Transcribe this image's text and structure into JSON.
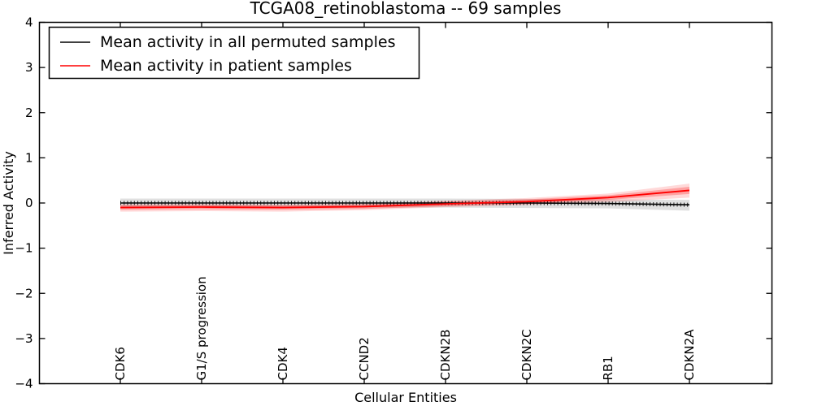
{
  "title": "TCGA08_retinoblastoma -- 69 samples",
  "chart_data": {
    "type": "line",
    "title": "TCGA08_retinoblastoma -- 69 samples",
    "xlabel": "Cellular Entities",
    "ylabel": "Inferred Activity",
    "ylim": [
      -4,
      4
    ],
    "yticks": [
      -4,
      -3,
      -2,
      -1,
      0,
      1,
      2,
      3,
      4
    ],
    "grid": false,
    "tick_direction": "in",
    "categories": [
      "CDK6",
      "G1/S progression",
      "CDK4",
      "CCND2",
      "CDKN2B",
      "CDKN2C",
      "RB1",
      "CDKN2A"
    ],
    "x_tick_label_rotation": "vertical-bottom-to-top",
    "legend": {
      "position": "upper left",
      "border": true
    },
    "series": [
      {
        "name": "Mean activity in all permuted samples",
        "color": "#000000",
        "line_style": "solid with dense vertical tick markers",
        "values": [
          0.0,
          0.0,
          0.0,
          0.0,
          0.0,
          0.0,
          -0.01,
          -0.04
        ],
        "band": {
          "upper": [
            0.1,
            0.1,
            0.1,
            0.1,
            0.1,
            0.09,
            0.08,
            0.07
          ],
          "lower": [
            -0.1,
            -0.1,
            -0.1,
            -0.1,
            -0.1,
            -0.11,
            -0.12,
            -0.17
          ],
          "color": "#000000",
          "alpha": 0.12
        }
      },
      {
        "name": "Mean activity in patient samples",
        "color": "#ff0000",
        "line_style": "solid",
        "values": [
          -0.1,
          -0.09,
          -0.1,
          -0.08,
          -0.02,
          0.03,
          0.12,
          0.28
        ],
        "band_inner": {
          "upper": [
            -0.05,
            -0.04,
            -0.05,
            -0.03,
            0.03,
            0.08,
            0.17,
            0.36
          ],
          "lower": [
            -0.15,
            -0.14,
            -0.15,
            -0.13,
            -0.07,
            -0.02,
            0.07,
            0.2
          ],
          "color": "#ff0000",
          "alpha": 0.25
        },
        "band_outer": {
          "upper": [
            -0.03,
            -0.03,
            -0.04,
            -0.02,
            0.05,
            0.11,
            0.21,
            0.43
          ],
          "lower": [
            -0.19,
            -0.18,
            -0.19,
            -0.16,
            -0.09,
            -0.04,
            0.02,
            0.12
          ],
          "color": "#ff0000",
          "alpha": 0.15
        }
      }
    ]
  }
}
